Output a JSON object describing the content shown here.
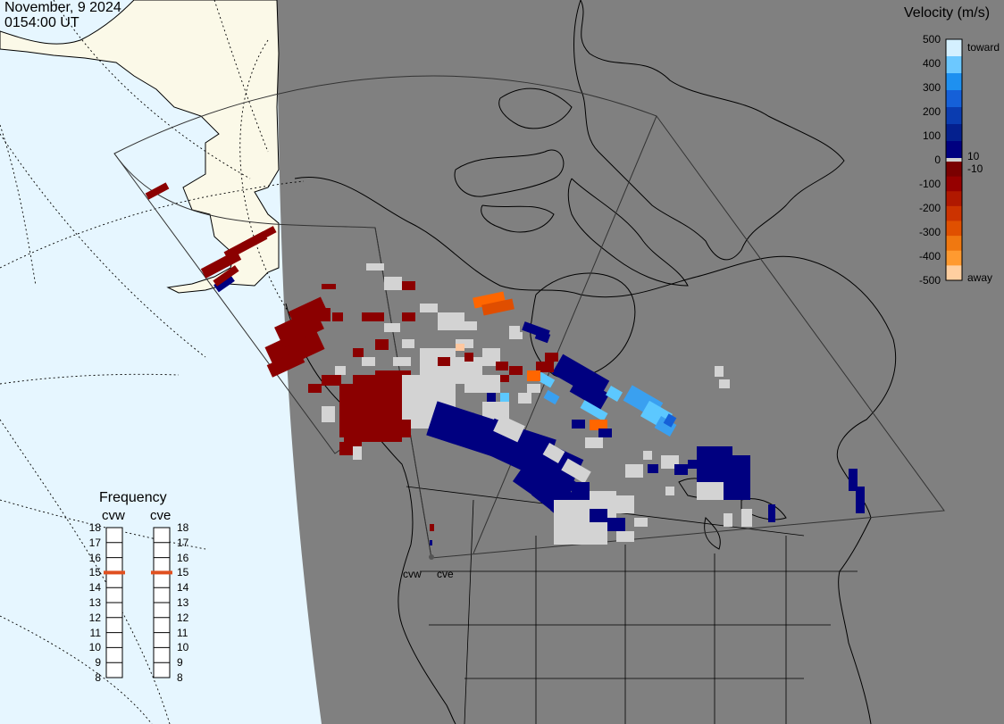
{
  "header": {
    "date": "November, 9 2024",
    "time": "0154:00 UT"
  },
  "colorbar": {
    "title": "Velocity (m/s)",
    "ticks": [
      "500",
      "400",
      "300",
      "200",
      "100",
      "0",
      "-100",
      "-200",
      "-300",
      "-400",
      "-500"
    ],
    "inner_ticks": [
      "10",
      "-10"
    ],
    "end_labels": {
      "top": "toward",
      "bottom": "away"
    },
    "colors_toward": [
      "#d4f0ff",
      "#6cc8ff",
      "#1e90f0",
      "#1560d8",
      "#0a3cb0",
      "#04208e",
      "#000080"
    ],
    "colors_away": [
      "#7a0000",
      "#960000",
      "#b01800",
      "#cc3300",
      "#e05000",
      "#f07810",
      "#ff9a30",
      "#ffcfa0"
    ]
  },
  "frequency": {
    "title": "Frequency",
    "radars": [
      {
        "name": "cvw",
        "value": 15
      },
      {
        "name": "cve",
        "value": 15
      }
    ],
    "scale": [
      "18",
      "17",
      "16",
      "15",
      "14",
      "13",
      "12",
      "11",
      "10",
      "9",
      "8"
    ]
  },
  "map": {
    "radar_labels": [
      "cvw",
      "cve"
    ],
    "colors": {
      "ocean": "#e6f6ff",
      "night": "#808080",
      "land_day": "#fbf9e8",
      "lines": "#000000",
      "grid": "#000000"
    },
    "icons": [
      "terminator-shading",
      "coastline-outline",
      "radar-site-marker"
    ]
  }
}
